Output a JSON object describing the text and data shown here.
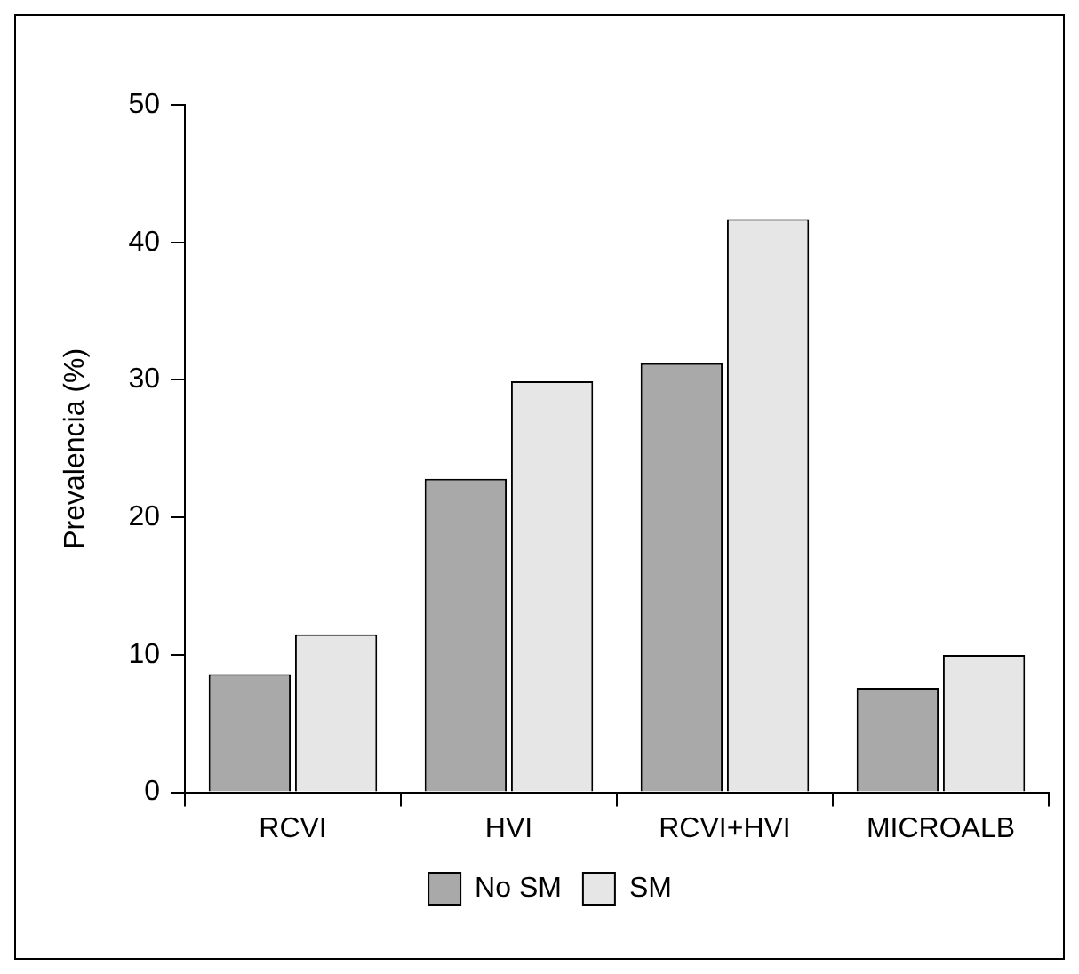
{
  "chart_data": {
    "type": "bar",
    "ylabel": "Prevalencia (%)",
    "categories": [
      "RCVI",
      "HVI",
      "RCVI+HVI",
      "MICROALB"
    ],
    "series": [
      {
        "name": "No SM",
        "color": "#a9a9a9",
        "values": [
          8.6,
          22.8,
          31.2,
          7.6
        ]
      },
      {
        "name": "SM",
        "color": "#e6e6e6",
        "values": [
          11.5,
          29.9,
          41.7,
          10.0
        ]
      }
    ],
    "ylim": [
      0,
      50
    ],
    "yticks": [
      0,
      10,
      20,
      30,
      40,
      50
    ],
    "grid": false,
    "legend": "bottom"
  }
}
